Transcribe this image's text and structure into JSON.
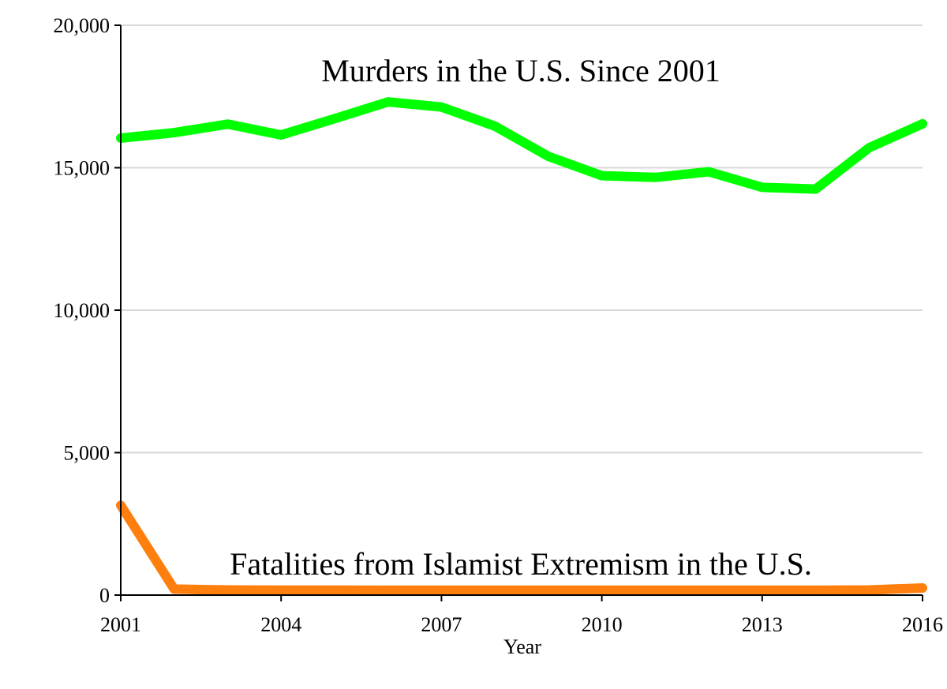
{
  "chart_data": {
    "type": "line",
    "xlabel": "Year",
    "ylabel": "",
    "x": [
      2001,
      2002,
      2003,
      2004,
      2005,
      2006,
      2007,
      2008,
      2009,
      2010,
      2011,
      2012,
      2013,
      2014,
      2015,
      2016
    ],
    "x_ticks": [
      "2001",
      "2004",
      "2007",
      "2010",
      "2013",
      "2016"
    ],
    "xlim": [
      2001,
      2016
    ],
    "ylim": [
      0,
      20000
    ],
    "y_ticks": [
      "0",
      "5,000",
      "10,000",
      "15,000",
      "20,000"
    ],
    "grid": true,
    "series": [
      {
        "color": "#00ff00",
        "values": [
          16040,
          16230,
          16530,
          16150,
          16720,
          17310,
          17130,
          16460,
          15400,
          14720,
          14660,
          14860,
          14310,
          14250,
          15700,
          16540
        ],
        "label": "Murders in the U.S. Since 2001"
      },
      {
        "color": "#ff7f0e",
        "values": [
          3150,
          210,
          180,
          175,
          175,
          170,
          170,
          170,
          170,
          170,
          170,
          170,
          170,
          170,
          180,
          250
        ],
        "label": "Fatalities from Islamist Extremism in the U.S."
      }
    ]
  }
}
